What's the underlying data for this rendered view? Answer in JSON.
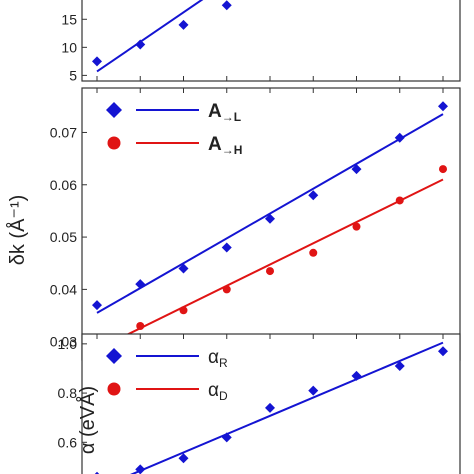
{
  "chart_data": [
    {
      "type": "scatter",
      "ylabel": "",
      "ylim": [
        4,
        22
      ],
      "yticks": [
        "5",
        "10",
        "15"
      ],
      "x": [
        1,
        2,
        3,
        4
      ],
      "series": [
        {
          "name": "",
          "marker": "diamond",
          "color": "#1414d2",
          "values": [
            7.5,
            10.5,
            14,
            17.5
          ]
        }
      ],
      "fits": [
        {
          "color": "#1414d2",
          "x": [
            1,
            4
          ],
          "y": [
            5.7,
            21.5
          ]
        }
      ]
    },
    {
      "type": "scatter",
      "ylabel": "δk (Å⁻¹)",
      "ylim": [
        0.0265,
        0.0785
      ],
      "yticks": [
        "0.03",
        "0.04",
        "0.05",
        "0.06",
        "0.07"
      ],
      "x": [
        1,
        2,
        3,
        4,
        5,
        6,
        7,
        8,
        9
      ],
      "legend_position": "top-left",
      "series": [
        {
          "name": "A→L",
          "name_main": "A",
          "name_sub": "→L",
          "marker": "diamond",
          "color": "#1414d2",
          "values": [
            0.037,
            0.041,
            0.044,
            0.048,
            0.0535,
            0.058,
            0.063,
            0.069,
            0.075
          ]
        },
        {
          "name": "A→H",
          "name_main": "A",
          "name_sub": "→H",
          "marker": "circle",
          "color": "#e01414",
          "values": [
            0.029,
            0.033,
            0.036,
            0.04,
            0.0435,
            0.047,
            0.052,
            0.057,
            0.063
          ]
        }
      ],
      "fits": [
        {
          "color": "#1414d2",
          "x": [
            1,
            9
          ],
          "y": [
            0.0355,
            0.0735
          ]
        },
        {
          "color": "#e01414",
          "x": [
            1,
            9
          ],
          "y": [
            0.0285,
            0.061
          ]
        }
      ]
    },
    {
      "type": "scatter",
      "ylabel": "α (eVÅ)",
      "ylim": [
        0.39,
        1.04
      ],
      "yticks": [
        "0.6",
        "0.8",
        "1.0"
      ],
      "x": [
        1,
        2,
        3,
        4,
        5,
        6,
        7,
        8,
        9
      ],
      "legend_position": "top-left",
      "series": [
        {
          "name": "αR",
          "name_main": "α",
          "name_sub": "R",
          "marker": "diamond",
          "color": "#1414d2",
          "values": [
            0.46,
            0.49,
            0.535,
            0.62,
            0.74,
            0.81,
            0.87,
            0.91,
            0.97
          ]
        },
        {
          "name": "αD",
          "name_main": "α",
          "name_sub": "D",
          "marker": "circle",
          "color": "#e01414",
          "values": []
        }
      ],
      "fits": [
        {
          "color": "#1414d2",
          "x": [
            1,
            9
          ],
          "y": [
            0.41,
            1.005
          ]
        }
      ]
    }
  ]
}
